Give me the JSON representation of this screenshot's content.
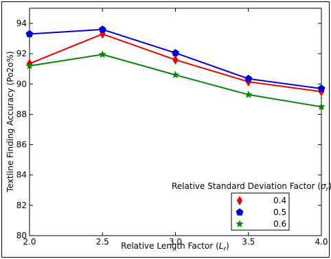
{
  "chart_data": {
    "type": "line",
    "title": "",
    "xlabel": "Relative Length Factor (L_r)",
    "ylabel": "Textline Finding Accuracy (Po2o%)",
    "x": [
      2.0,
      2.5,
      3.0,
      3.5,
      4.0
    ],
    "x_ticks": [
      "2.0",
      "2.5",
      "3.0",
      "3.5",
      "4.0"
    ],
    "y_ticks": [
      "80",
      "82",
      "84",
      "86",
      "88",
      "90",
      "92",
      "94"
    ],
    "xlim": [
      2.0,
      4.0
    ],
    "ylim": [
      80,
      95
    ],
    "grid": false,
    "legend": {
      "title": "Relative Standard Deviation Factor (σ_r)",
      "placement": "lower-right"
    },
    "series": [
      {
        "name": "0.4",
        "color": "#ee0000",
        "marker": "diamond",
        "values": [
          91.35,
          93.3,
          91.6,
          90.15,
          89.5
        ]
      },
      {
        "name": "0.5",
        "color": "#0000cc",
        "marker": "pentagon",
        "values": [
          93.3,
          93.6,
          92.05,
          90.35,
          89.7
        ]
      },
      {
        "name": "0.6",
        "color": "#008800",
        "marker": "star",
        "values": [
          91.2,
          91.95,
          90.6,
          89.3,
          88.5
        ]
      }
    ]
  }
}
